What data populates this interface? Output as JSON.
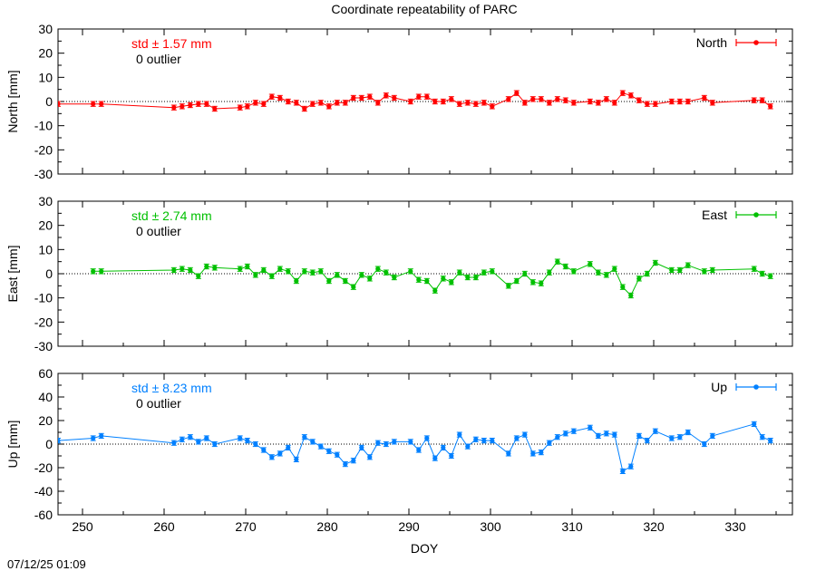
{
  "title": "Coordinate repeatability of PARC",
  "xlabel": "DOY",
  "timestamp": "07/12/25 01:09",
  "colors": {
    "north": "#ff0000",
    "east": "#00c000",
    "up": "#0080ff"
  },
  "chart_data": [
    {
      "type": "line",
      "name": "North",
      "ylabel": "North [mm]",
      "stat_label": "std ± 1.57 mm",
      "outlier_label": "0 outlier",
      "legend": "North",
      "ylim": [
        -30,
        30
      ],
      "yticks": [
        "-30",
        "-20",
        "-10",
        "0",
        "10",
        "20",
        "30"
      ],
      "xlim": [
        247,
        337
      ],
      "xticks": [
        "250",
        "260",
        "270",
        "280",
        "290",
        "300",
        "310",
        "320",
        "330"
      ],
      "x": [
        247,
        251.3,
        252.3,
        261.2,
        262.2,
        263.2,
        264.2,
        265.2,
        266.2,
        269.3,
        270.2,
        271.2,
        272.2,
        273.2,
        274.2,
        275.2,
        276.2,
        277.2,
        278.2,
        279.2,
        280.2,
        281.2,
        282.2,
        283.2,
        284.2,
        285.2,
        286.2,
        287.2,
        288.2,
        290.2,
        291.2,
        292.2,
        293.2,
        294.2,
        295.2,
        296.2,
        297.2,
        298.2,
        299.2,
        300.2,
        302.2,
        303.2,
        304.2,
        305.2,
        306.2,
        307.2,
        308.2,
        309.2,
        310.2,
        312.2,
        313.2,
        314.2,
        315.2,
        316.2,
        317.2,
        318.2,
        319.2,
        320.2,
        322.2,
        323.2,
        324.2,
        326.2,
        327.2,
        332.3,
        333.3,
        334.3
      ],
      "values": [
        -1,
        -1,
        -1,
        -2.5,
        -2,
        -1.5,
        -1,
        -1,
        -3,
        -2.5,
        -2,
        -0.5,
        -1,
        2,
        1.5,
        0,
        -0.5,
        -3,
        -1,
        -0.5,
        -2,
        -0.5,
        -0.5,
        1.5,
        1.5,
        2,
        -0.5,
        2.5,
        1.5,
        0,
        2,
        2,
        0,
        0,
        1,
        -1,
        -0.5,
        -1,
        -0.5,
        -2,
        1,
        3.5,
        -0.5,
        1,
        1,
        -0.5,
        1,
        0.5,
        -0.5,
        0,
        -0.5,
        1,
        -0.5,
        3.5,
        2.5,
        0.5,
        -1,
        -1,
        0,
        0,
        0,
        1.5,
        -0.5,
        0.5,
        0.5,
        -2
      ],
      "error": 1
    },
    {
      "type": "line",
      "name": "East",
      "ylabel": "East [mm]",
      "stat_label": "std ± 2.74 mm",
      "outlier_label": "0 outlier",
      "legend": "East",
      "ylim": [
        -30,
        30
      ],
      "yticks": [
        "-30",
        "-20",
        "-10",
        "0",
        "10",
        "20",
        "30"
      ],
      "xlim": [
        247,
        337
      ],
      "xticks": [
        "250",
        "260",
        "270",
        "280",
        "290",
        "300",
        "310",
        "320",
        "330"
      ],
      "x": [
        251.3,
        252.3,
        261.2,
        262.2,
        263.2,
        264.2,
        265.2,
        266.2,
        269.3,
        270.2,
        271.2,
        272.2,
        273.2,
        274.2,
        275.2,
        276.2,
        277.2,
        278.2,
        279.2,
        280.2,
        281.2,
        282.2,
        283.2,
        284.2,
        285.2,
        286.2,
        287.2,
        288.2,
        290.2,
        291.2,
        292.2,
        293.2,
        294.2,
        295.2,
        296.2,
        297.2,
        298.2,
        299.2,
        300.2,
        302.2,
        303.2,
        304.2,
        305.2,
        306.2,
        307.2,
        308.2,
        309.2,
        310.2,
        312.2,
        313.2,
        314.2,
        315.2,
        316.2,
        317.2,
        318.2,
        319.2,
        320.2,
        322.2,
        323.2,
        324.2,
        326.2,
        327.2,
        332.3,
        333.3,
        334.3
      ],
      "values": [
        1,
        1,
        1.5,
        2,
        1.5,
        -1,
        3,
        2.5,
        2,
        3,
        -0.5,
        1.5,
        -1,
        2,
        1,
        -3,
        1,
        0.5,
        1,
        -3,
        -0.5,
        -3,
        -5.5,
        -0.5,
        -2,
        2,
        0.5,
        -1.5,
        1,
        -2.5,
        -3,
        -7,
        -2,
        -3.5,
        0.5,
        -1.5,
        -1.5,
        0.5,
        1,
        -5,
        -3,
        0,
        -3.5,
        -4,
        0.5,
        5,
        3,
        1,
        4,
        0.5,
        -0.5,
        2,
        -5.5,
        -9,
        -2,
        0,
        4.5,
        1.5,
        1.5,
        3.5,
        1,
        1.5,
        2,
        0,
        -1
      ],
      "error": 1
    },
    {
      "type": "line",
      "name": "Up",
      "ylabel": "Up [mm]",
      "stat_label": "std ± 8.23 mm",
      "outlier_label": "0 outlier",
      "legend": "Up",
      "ylim": [
        -60,
        60
      ],
      "yticks": [
        "-60",
        "-40",
        "-20",
        "0",
        "20",
        "40",
        "60"
      ],
      "xlim": [
        247,
        337
      ],
      "xticks": [
        "250",
        "260",
        "270",
        "280",
        "290",
        "300",
        "310",
        "320",
        "330"
      ],
      "x": [
        247,
        251.3,
        252.3,
        261.2,
        262.2,
        263.2,
        264.2,
        265.2,
        266.2,
        269.3,
        270.2,
        271.2,
        272.2,
        273.2,
        274.2,
        275.2,
        276.2,
        277.2,
        278.2,
        279.2,
        280.2,
        281.2,
        282.2,
        283.2,
        284.2,
        285.2,
        286.2,
        287.2,
        288.2,
        290.2,
        291.2,
        292.2,
        293.2,
        294.2,
        295.2,
        296.2,
        297.2,
        298.2,
        299.2,
        300.2,
        302.2,
        303.2,
        304.2,
        305.2,
        306.2,
        307.2,
        308.2,
        309.2,
        310.2,
        312.2,
        313.2,
        314.2,
        315.2,
        316.2,
        317.2,
        318.2,
        319.2,
        320.2,
        322.2,
        323.2,
        324.2,
        326.2,
        327.2,
        332.3,
        333.3,
        334.3
      ],
      "values": [
        3,
        5,
        7,
        1,
        4,
        6,
        2,
        5,
        0,
        5,
        3,
        0,
        -5,
        -11,
        -8,
        -3,
        -13,
        6,
        2,
        -2,
        -6,
        -9,
        -17,
        -14,
        -3,
        -11,
        1,
        0,
        2,
        2,
        -5,
        5,
        -12,
        -3,
        -10,
        8,
        -2,
        4,
        3,
        3,
        -8,
        5,
        8,
        -8,
        -7,
        1,
        6,
        9,
        11,
        14,
        7,
        9,
        8,
        -23,
        -19,
        7,
        3,
        11,
        5,
        6,
        10,
        0,
        7,
        17,
        6,
        3
      ],
      "error": 2
    }
  ]
}
